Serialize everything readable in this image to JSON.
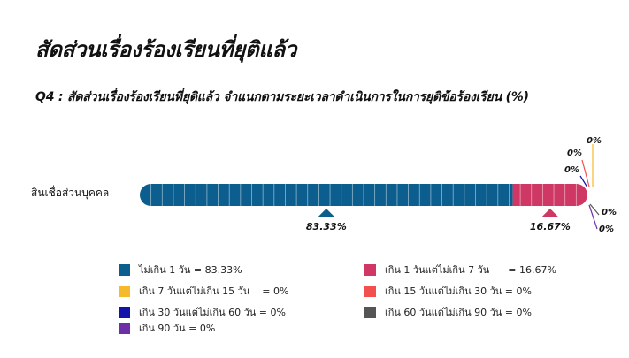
{
  "page": {
    "title": "สัดส่วนเรื่องร้องเรียนที่ยุติแล้ว",
    "subtitle": "Q4 : สัดส่วนเรื่องร้องเรียนที่ยุติแล้ว จำแนกตามระยะเวลาดำเนินการในการยุติข้อร้องเรียน (%)"
  },
  "chart_data": {
    "type": "bar",
    "orientation": "horizontal-stacked",
    "categories": [
      "สินเชื่อส่วนบุคคล"
    ],
    "xlim": [
      0,
      100
    ],
    "series": [
      {
        "name": "ไม่เกิน 1 วัน",
        "values": [
          83.33
        ],
        "label": "83.33%",
        "legend_text": "ไม่เกิน 1 วัน = 83.33%",
        "color": "#0b5e8e"
      },
      {
        "name": "เกิน 1 วันแต่ไม่เกิน 7 วัน",
        "values": [
          16.67
        ],
        "label": "16.67%",
        "legend_text": "เกิน 1 วันแต่ไม่เกิน 7 วัน      = 16.67%",
        "color": "#cf3864"
      },
      {
        "name": "เกิน 7 วันแต่ไม่เกิน 15 วัน",
        "values": [
          0
        ],
        "label": "0%",
        "legend_text": "เกิน 7 วันแต่ไม่เกิน 15 วัน    = 0%",
        "color": "#f5b92c"
      },
      {
        "name": "เกิน 15 วันแต่ไม่เกิน 30 วัน",
        "values": [
          0
        ],
        "label": "0%",
        "legend_text": "เกิน 15 วันแต่ไม่เกิน 30 วัน = 0%",
        "color": "#f24f4f"
      },
      {
        "name": "เกิน 30 วันแต่ไม่เกิน 60 วัน",
        "values": [
          0
        ],
        "label": "0%",
        "legend_text": "เกิน 30 วันแต่ไม่เกิน 60 วัน = 0%",
        "color": "#1414aa"
      },
      {
        "name": "เกิน 60 วันแต่ไม่เกิน 90 วัน",
        "values": [
          0
        ],
        "label": "0%",
        "legend_text": "เกิน 60 วันแต่ไม่เกิน 90 วัน = 0%",
        "color": "#555555"
      },
      {
        "name": "เกิน 90 วัน",
        "values": [
          0
        ],
        "label": "0%",
        "legend_text": "เกิน 90 วัน = 0%",
        "color": "#6f2da8"
      }
    ],
    "legend": "bottom"
  }
}
